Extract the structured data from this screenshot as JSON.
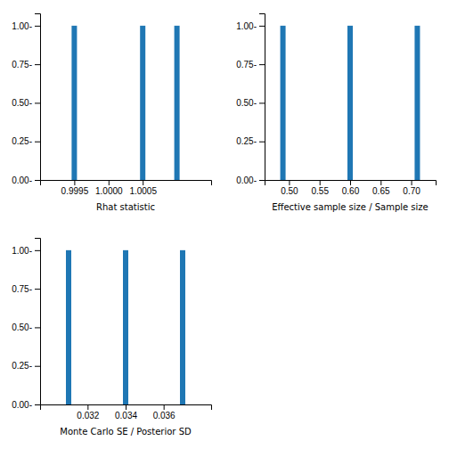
{
  "chart_data": [
    {
      "type": "bar",
      "xlabel": "Rhat statistic",
      "x": [
        0.9995,
        1.0005,
        1.001
      ],
      "values": [
        1.0,
        1.0,
        1.0
      ],
      "xlim": [
        0.999,
        1.0015
      ],
      "xticks": [
        0.9995,
        {
          "value": 1.0,
          "label": "1.0000"
        },
        1.0005
      ],
      "ylim": [
        0.0,
        1.08
      ],
      "yticks": [
        {
          "value": 0.0,
          "label": "0.00-"
        },
        {
          "value": 0.25,
          "label": "0.25-"
        },
        {
          "value": 0.5,
          "label": "0.50-"
        },
        {
          "value": 0.75,
          "label": "0.75-"
        },
        {
          "value": 1.0,
          "label": "1.00-"
        }
      ]
    },
    {
      "type": "bar",
      "xlabel": "Effective sample size / Sample size",
      "x": [
        0.49,
        0.6,
        0.71
      ],
      "values": [
        1.0,
        1.0,
        1.0
      ],
      "xlim": [
        0.46,
        0.74
      ],
      "xticks": [
        {
          "value": 0.5,
          "label": "0.50"
        },
        0.55,
        {
          "value": 0.6,
          "label": "0.60"
        },
        0.65,
        {
          "value": 0.7,
          "label": "0.70"
        }
      ],
      "ylim": [
        0.0,
        1.08
      ],
      "yticks": [
        {
          "value": 0.0,
          "label": "0.00-"
        },
        {
          "value": 0.25,
          "label": "0.25-"
        },
        {
          "value": 0.5,
          "label": "0.50-"
        },
        {
          "value": 0.75,
          "label": "0.75-"
        },
        {
          "value": 1.0,
          "label": "1.00-"
        }
      ]
    },
    {
      "type": "bar",
      "xlabel": "Monte Carlo SE / Posterior SD",
      "x": [
        0.031,
        0.034,
        0.037
      ],
      "values": [
        1.0,
        1.0,
        1.0
      ],
      "xlim": [
        0.0295,
        0.0385
      ],
      "xticks": [
        0.032,
        0.034,
        0.036
      ],
      "ylim": [
        0.0,
        1.08
      ],
      "yticks": [
        {
          "value": 0.0,
          "label": "0.00-"
        },
        {
          "value": 0.25,
          "label": "0.25-"
        },
        {
          "value": 0.5,
          "label": "0.50-"
        },
        {
          "value": 0.75,
          "label": "0.75-"
        },
        {
          "value": 1.0,
          "label": "1.00-"
        }
      ]
    }
  ]
}
